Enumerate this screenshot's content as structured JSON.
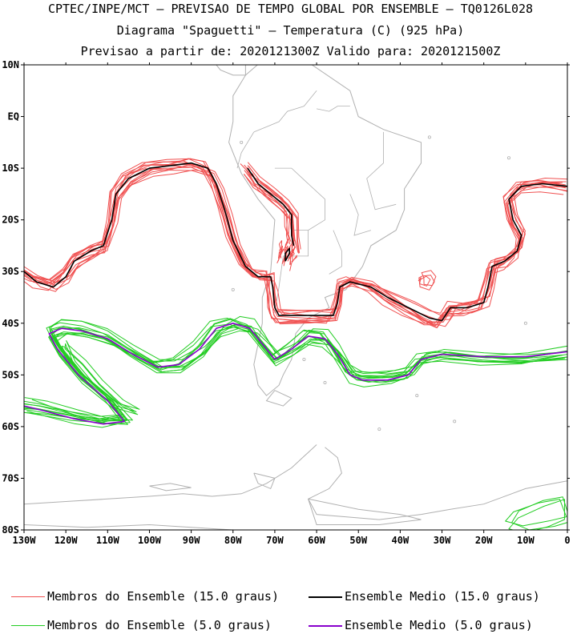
{
  "header": {
    "line1": "CPTEC/INPE/MCT – PREVISAO DE TEMPO GLOBAL POR ENSEMBLE – TQ0126L028",
    "line2": "Diagrama \"Spaguetti\" – Temperatura (C) (925 hPa)",
    "line3": "Previsao a partir de: 2020121300Z  Valido para: 2020121500Z"
  },
  "map": {
    "projection": "lat-lon",
    "lon_range": [
      -130,
      0
    ],
    "lat_range": [
      -80,
      10
    ],
    "lat_ticks": [
      {
        "lat": 10,
        "label": "10N"
      },
      {
        "lat": 0,
        "label": "EQ"
      },
      {
        "lat": -10,
        "label": "10S"
      },
      {
        "lat": -20,
        "label": "20S"
      },
      {
        "lat": -30,
        "label": "30S"
      },
      {
        "lat": -40,
        "label": "40S"
      },
      {
        "lat": -50,
        "label": "50S"
      },
      {
        "lat": -60,
        "label": "60S"
      },
      {
        "lat": -70,
        "label": "70S"
      },
      {
        "lat": -80,
        "label": "80S"
      }
    ],
    "lon_ticks": [
      {
        "lon": -130,
        "label": "130W"
      },
      {
        "lon": -120,
        "label": "120W"
      },
      {
        "lon": -110,
        "label": "110W"
      },
      {
        "lon": -100,
        "label": "100W"
      },
      {
        "lon": -90,
        "label": "90W"
      },
      {
        "lon": -80,
        "label": "80W"
      },
      {
        "lon": -70,
        "label": "70W"
      },
      {
        "lon": -60,
        "label": "60W"
      },
      {
        "lon": -50,
        "label": "50W"
      },
      {
        "lon": -40,
        "label": "40W"
      },
      {
        "lon": -30,
        "label": "30W"
      },
      {
        "lon": -20,
        "label": "20W"
      },
      {
        "lon": -10,
        "label": "10W"
      },
      {
        "lon": 0,
        "label": "0"
      }
    ],
    "colors": {
      "member15": "#f05050",
      "mean15": "#000000",
      "member5": "#22cc22",
      "mean5": "#8800cc",
      "coast": "#b0b0b0"
    }
  },
  "legend": {
    "member15_label": "Membros do Ensemble (15.0 graus)",
    "mean15_label": "Ensemble Medio (15.0 graus)",
    "member5_label": "Membros do Ensemble (5.0 graus)",
    "mean5_label": "Ensemble Medio (5.0 graus)"
  },
  "chart_data": {
    "type": "contour-spaghetti",
    "contours": [
      {
        "level": 15.0,
        "kind": "ensemble-mean",
        "points": [
          [
            -130,
            -30
          ],
          [
            -127,
            -32
          ],
          [
            -123,
            -33
          ],
          [
            -120,
            -31
          ],
          [
            -118,
            -28
          ],
          [
            -114,
            -26
          ],
          [
            -111,
            -25
          ],
          [
            -109,
            -20
          ],
          [
            -108,
            -15
          ],
          [
            -105,
            -12
          ],
          [
            -100,
            -10
          ],
          [
            -95,
            -9.5
          ],
          [
            -90,
            -9
          ],
          [
            -86,
            -10
          ],
          [
            -84,
            -13
          ],
          [
            -82,
            -18
          ],
          [
            -80,
            -24
          ],
          [
            -77,
            -29
          ],
          [
            -74,
            -31
          ],
          [
            -71,
            -31
          ],
          [
            -70.5,
            -33
          ],
          [
            -70,
            -37
          ],
          [
            -69,
            -38.5
          ],
          [
            -62,
            -38.5
          ],
          [
            -56,
            -38.5
          ],
          [
            -55,
            -36
          ],
          [
            -54.5,
            -33
          ],
          [
            -52,
            -32
          ],
          [
            -47,
            -33
          ],
          [
            -43,
            -35
          ],
          [
            -38,
            -37
          ],
          [
            -33,
            -39
          ],
          [
            -30,
            -39.5
          ],
          [
            -28,
            -37
          ],
          [
            -24,
            -37
          ],
          [
            -20,
            -36
          ],
          [
            -19,
            -33
          ],
          [
            -18,
            -29
          ],
          [
            -15,
            -28
          ],
          [
            -12,
            -26
          ],
          [
            -11,
            -23
          ],
          [
            -13,
            -20
          ],
          [
            -14,
            -16
          ],
          [
            -11,
            -13.5
          ],
          [
            -6,
            -13
          ],
          [
            0,
            -13.5
          ]
        ]
      },
      {
        "level": 15.0,
        "kind": "ensemble-mean",
        "points": [
          [
            -76.5,
            -10
          ],
          [
            -74,
            -13
          ],
          [
            -71,
            -15
          ],
          [
            -68,
            -17
          ],
          [
            -66,
            -19
          ],
          [
            -66,
            -23
          ],
          [
            -65.5,
            -25
          ]
        ]
      },
      {
        "level": 15.0,
        "kind": "ensemble-mean",
        "points": [
          [
            -67.5,
            -28
          ],
          [
            -66.5,
            -26.5
          ],
          [
            -66.5,
            -25.5
          ],
          [
            -67.5,
            -26.5
          ],
          [
            -67.5,
            -28
          ]
        ]
      },
      {
        "level": 5.0,
        "kind": "ensemble-mean",
        "points": [
          [
            -130,
            -56
          ],
          [
            -125,
            -57
          ],
          [
            -118,
            -58.5
          ],
          [
            -111,
            -59.5
          ],
          [
            -106,
            -59
          ],
          [
            -110,
            -55
          ],
          [
            -117,
            -50
          ],
          [
            -122,
            -45
          ],
          [
            -124,
            -42
          ],
          [
            -121,
            -41
          ],
          [
            -116,
            -41.5
          ],
          [
            -110,
            -43
          ],
          [
            -104,
            -46
          ],
          [
            -98,
            -48.5
          ],
          [
            -93,
            -48
          ],
          [
            -88,
            -45
          ],
          [
            -84,
            -41
          ],
          [
            -80,
            -40
          ],
          [
            -76,
            -41
          ],
          [
            -73,
            -44
          ],
          [
            -70,
            -47
          ],
          [
            -66,
            -45
          ],
          [
            -62,
            -42.5
          ],
          [
            -58,
            -43
          ],
          [
            -55,
            -46
          ],
          [
            -52,
            -50
          ],
          [
            -49,
            -51
          ],
          [
            -43,
            -51
          ],
          [
            -38,
            -50
          ],
          [
            -35,
            -47
          ],
          [
            -30,
            -46
          ],
          [
            -20,
            -46.5
          ],
          [
            -10,
            -46.5
          ],
          [
            0,
            -45.5
          ]
        ]
      },
      {
        "level": 5.0,
        "kind": "ensemble-member-closed",
        "points": [
          [
            -1,
            -74
          ],
          [
            -6,
            -75
          ],
          [
            -12,
            -77
          ],
          [
            -14,
            -79
          ],
          [
            -10,
            -80
          ],
          [
            -4,
            -79
          ],
          [
            0,
            -78
          ]
        ]
      },
      {
        "level": 5.0,
        "kind": "ensemble-member-closed",
        "points": [
          [
            -120,
            -44
          ],
          [
            -118,
            -48
          ],
          [
            -114,
            -52
          ],
          [
            -108,
            -56
          ],
          [
            -103,
            -57
          ],
          [
            -107,
            -55
          ],
          [
            -112,
            -51
          ],
          [
            -116,
            -47
          ],
          [
            -120,
            -44
          ]
        ]
      },
      {
        "level": 15.0,
        "kind": "ensemble-member-closed",
        "points": [
          [
            -35,
            -31
          ],
          [
            -33,
            -30.5
          ],
          [
            -32,
            -31.5
          ],
          [
            -33,
            -33
          ],
          [
            -35,
            -32.5
          ],
          [
            -35,
            -31
          ]
        ]
      }
    ]
  }
}
